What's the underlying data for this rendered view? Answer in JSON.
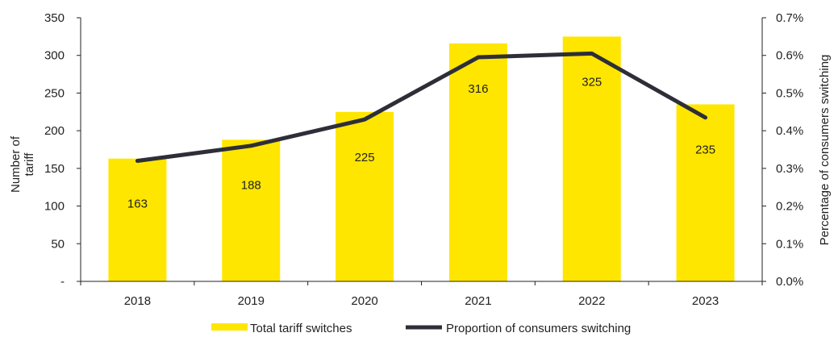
{
  "chart_data": {
    "type": "bar",
    "categories": [
      "2018",
      "2019",
      "2020",
      "2021",
      "2022",
      "2023"
    ],
    "series": [
      {
        "name": "Total tariff switches",
        "type": "bar",
        "axis": "left",
        "values": [
          163,
          188,
          225,
          316,
          325,
          235
        ],
        "labels": [
          "163",
          "188",
          "225",
          "316",
          "325",
          "235"
        ],
        "color": "#FFE600"
      },
      {
        "name": "Proportion of consumers switching",
        "type": "line",
        "axis": "right",
        "values": [
          0.32,
          0.36,
          0.43,
          0.595,
          0.605,
          0.435
        ],
        "color": "#2E2E38"
      }
    ],
    "left_axis": {
      "title_lines": [
        "Number of",
        "tariff"
      ],
      "ylim": [
        0,
        350
      ],
      "ticks": [
        {
          "value": 0,
          "label": "-"
        },
        {
          "value": 50,
          "label": "50"
        },
        {
          "value": 100,
          "label": "100"
        },
        {
          "value": 150,
          "label": "150"
        },
        {
          "value": 200,
          "label": "200"
        },
        {
          "value": 250,
          "label": "250"
        },
        {
          "value": 300,
          "label": "300"
        },
        {
          "value": 350,
          "label": "350"
        }
      ]
    },
    "right_axis": {
      "title": "Percentage of consumers switching",
      "ylim": [
        0,
        0.7
      ],
      "ticks": [
        {
          "value": 0,
          "label": "0.0%"
        },
        {
          "value": 0.1,
          "label": "0.1%"
        },
        {
          "value": 0.2,
          "label": "0.2%"
        },
        {
          "value": 0.3,
          "label": "0.3%"
        },
        {
          "value": 0.4,
          "label": "0.4%"
        },
        {
          "value": 0.5,
          "label": "0.5%"
        },
        {
          "value": 0.6,
          "label": "0.6%"
        },
        {
          "value": 0.7,
          "label": "0.7%"
        }
      ]
    },
    "grid": false,
    "legend_position": "bottom"
  }
}
